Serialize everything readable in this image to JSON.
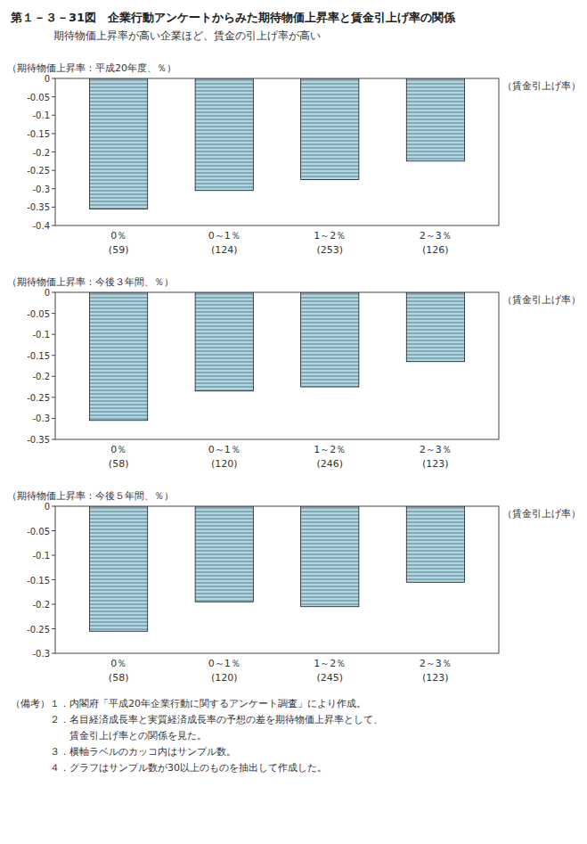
{
  "title": "第１－３－31図　企業行動アンケートからみた期待物価上昇率と賃金引上げ率の関係",
  "subtitle": "期待物価上昇率が高い企業ほど、賃金の引上げ率が高い",
  "annotations": [
    "（備考）１．内閣府「平成20年企業行動に関するアンケート調査」により作成。",
    "　　　　２．名目経済成長率と実質経済成長率の予想の差を期待物価上昇率として、",
    "　　　　　　賃金引上げ率との関係を見た。",
    "　　　　３．横軸ラベルのカッコ内はサンプル数。",
    "　　　　４．グラフはサンプル数が30以上のものを抽出して作成した。"
  ],
  "chart_data": [
    {
      "type": "bar",
      "ylabel": "（期待物価上昇率：平成20年度、％）",
      "xlabel": "（賃金引上げ率）",
      "categories": [
        "0％",
        "0～1％",
        "1～2％",
        "2～3％"
      ],
      "annotations": [
        "(59)",
        "(124)",
        "(253)",
        "(126)"
      ],
      "values": [
        -0.355,
        -0.305,
        -0.275,
        -0.225
      ],
      "color": "#add8e6",
      "grid": false,
      "ylim": [
        -0.4,
        0.0
      ],
      "yticks": [
        0,
        -0.05,
        -0.1,
        -0.15,
        -0.2,
        -0.25,
        -0.3,
        -0.35,
        -0.4
      ]
    },
    {
      "type": "bar",
      "ylabel": "（期待物価上昇率：今後３年間、％）",
      "xlabel": "（賃金引上げ率）",
      "categories": [
        "0％",
        "0～1％",
        "1～2％",
        "2～3％"
      ],
      "annotations": [
        "(58)",
        "(120)",
        "(246)",
        "(123)"
      ],
      "values": [
        -0.305,
        -0.235,
        -0.225,
        -0.165
      ],
      "color": "#add8e6",
      "grid": false,
      "ylim": [
        -0.35,
        0.0
      ],
      "yticks": [
        0,
        -0.05,
        -0.1,
        -0.15,
        -0.2,
        -0.25,
        -0.3,
        -0.35
      ]
    },
    {
      "type": "bar",
      "ylabel": "（期待物価上昇率：今後５年間、％）",
      "xlabel": "（賃金引上げ率）",
      "categories": [
        "0％",
        "0～1％",
        "1～2％",
        "2～3％"
      ],
      "annotations": [
        "(58)",
        "(120)",
        "(245)",
        "(123)"
      ],
      "values": [
        -0.255,
        -0.195,
        -0.205,
        -0.155
      ],
      "color": "#add8e6",
      "grid": false,
      "ylim": [
        -0.3,
        0.0
      ],
      "yticks": [
        0,
        -0.05,
        -0.1,
        -0.15,
        -0.2,
        -0.25,
        -0.3
      ]
    }
  ]
}
